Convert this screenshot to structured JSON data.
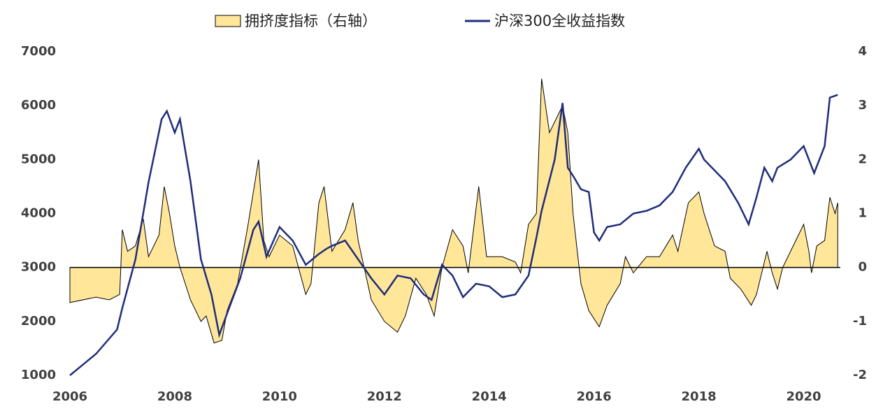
{
  "chart_data": {
    "type": "dual-axis",
    "xlim": [
      2006,
      2020.7
    ],
    "xticks": [
      2006,
      2008,
      2010,
      2012,
      2014,
      2016,
      2018,
      2020
    ],
    "ylim": [
      1000,
      7000
    ],
    "yticks": [
      1000,
      2000,
      3000,
      4000,
      5000,
      6000,
      7000
    ],
    "y2lim": [
      -2,
      4
    ],
    "y2ticks": [
      -2,
      -1,
      0,
      1,
      2,
      3,
      4
    ],
    "series": [
      {
        "name": "拥挤度指标（右轴）",
        "type": "area",
        "axis": "y2",
        "color": "#ffe699",
        "x": [
          2006.0,
          2006.5,
          2006.75,
          2006.95,
          2007.0,
          2007.1,
          2007.25,
          2007.4,
          2007.5,
          2007.7,
          2007.8,
          2007.9,
          2008.0,
          2008.1,
          2008.3,
          2008.5,
          2008.6,
          2008.75,
          2008.9,
          2009.0,
          2009.2,
          2009.4,
          2009.6,
          2009.7,
          2009.8,
          2010.0,
          2010.25,
          2010.5,
          2010.6,
          2010.75,
          2010.85,
          2011.0,
          2011.25,
          2011.4,
          2011.5,
          2011.75,
          2012.0,
          2012.25,
          2012.4,
          2012.6,
          2012.8,
          2012.95,
          2013.1,
          2013.3,
          2013.5,
          2013.6,
          2013.8,
          2013.95,
          2014.25,
          2014.5,
          2014.6,
          2014.75,
          2014.9,
          2015.0,
          2015.15,
          2015.3,
          2015.4,
          2015.5,
          2015.6,
          2015.75,
          2015.9,
          2016.1,
          2016.25,
          2016.5,
          2016.6,
          2016.75,
          2017.0,
          2017.25,
          2017.5,
          2017.6,
          2017.8,
          2018.0,
          2018.1,
          2018.3,
          2018.5,
          2018.6,
          2018.8,
          2019.0,
          2019.1,
          2019.3,
          2019.4,
          2019.5,
          2019.6,
          2019.75,
          2020.0,
          2020.1,
          2020.15,
          2020.25,
          2020.4,
          2020.5,
          2020.6,
          2020.65
        ],
        "values": [
          -0.65,
          -0.55,
          -0.6,
          -0.5,
          0.7,
          0.3,
          0.4,
          0.9,
          0.2,
          0.6,
          1.5,
          1.0,
          0.4,
          0.0,
          -0.6,
          -1.0,
          -0.9,
          -1.4,
          -1.35,
          -0.8,
          -0.3,
          0.8,
          2.0,
          0.5,
          0.2,
          0.6,
          0.4,
          -0.5,
          -0.3,
          1.2,
          1.5,
          0.3,
          0.7,
          1.2,
          0.5,
          -0.6,
          -1.0,
          -1.2,
          -0.9,
          -0.2,
          -0.5,
          -0.9,
          0.0,
          0.7,
          0.4,
          -0.1,
          1.5,
          0.2,
          0.2,
          0.1,
          -0.1,
          0.8,
          1.0,
          3.5,
          2.5,
          2.8,
          3.0,
          2.5,
          1.0,
          -0.3,
          -0.8,
          -1.1,
          -0.7,
          -0.3,
          0.2,
          -0.1,
          0.2,
          0.2,
          0.6,
          0.3,
          1.2,
          1.4,
          1.0,
          0.4,
          0.3,
          -0.2,
          -0.4,
          -0.7,
          -0.5,
          0.3,
          -0.1,
          -0.4,
          0.0,
          0.3,
          0.8,
          0.3,
          -0.1,
          0.4,
          0.5,
          1.3,
          1.0,
          1.2
        ]
      },
      {
        "name": "沪深300全收益指数",
        "type": "line",
        "color": "#1f2d7a",
        "x": [
          2006.0,
          2006.5,
          2006.9,
          2007.0,
          2007.25,
          2007.5,
          2007.75,
          2007.85,
          2008.0,
          2008.1,
          2008.3,
          2008.5,
          2008.7,
          2008.85,
          2009.0,
          2009.25,
          2009.5,
          2009.6,
          2009.75,
          2010.0,
          2010.25,
          2010.5,
          2010.75,
          2010.9,
          2011.0,
          2011.25,
          2011.5,
          2011.75,
          2012.0,
          2012.25,
          2012.5,
          2012.75,
          2012.9,
          2013.1,
          2013.3,
          2013.5,
          2013.75,
          2014.0,
          2014.25,
          2014.5,
          2014.75,
          2014.9,
          2015.0,
          2015.25,
          2015.4,
          2015.5,
          2015.6,
          2015.75,
          2015.9,
          2016.0,
          2016.1,
          2016.25,
          2016.5,
          2016.75,
          2017.0,
          2017.25,
          2017.5,
          2017.75,
          2018.0,
          2018.1,
          2018.25,
          2018.5,
          2018.75,
          2018.95,
          2019.1,
          2019.25,
          2019.4,
          2019.5,
          2019.75,
          2020.0,
          2020.2,
          2020.4,
          2020.5,
          2020.65
        ],
        "values": [
          1000,
          1400,
          1850,
          2250,
          3150,
          4580,
          5750,
          5900,
          5500,
          5750,
          4600,
          3150,
          2500,
          1750,
          2150,
          2800,
          3700,
          3850,
          3200,
          3750,
          3500,
          3050,
          3250,
          3350,
          3400,
          3500,
          3150,
          2800,
          2500,
          2850,
          2800,
          2500,
          2400,
          3050,
          2850,
          2450,
          2700,
          2650,
          2450,
          2500,
          2850,
          3550,
          4050,
          5000,
          6050,
          4850,
          4700,
          4450,
          4400,
          3650,
          3500,
          3750,
          3800,
          4000,
          4050,
          4150,
          4400,
          4850,
          5200,
          5000,
          4850,
          4600,
          4200,
          3800,
          4300,
          4850,
          4600,
          4850,
          5000,
          5250,
          4750,
          5250,
          6150,
          6200
        ]
      }
    ]
  }
}
